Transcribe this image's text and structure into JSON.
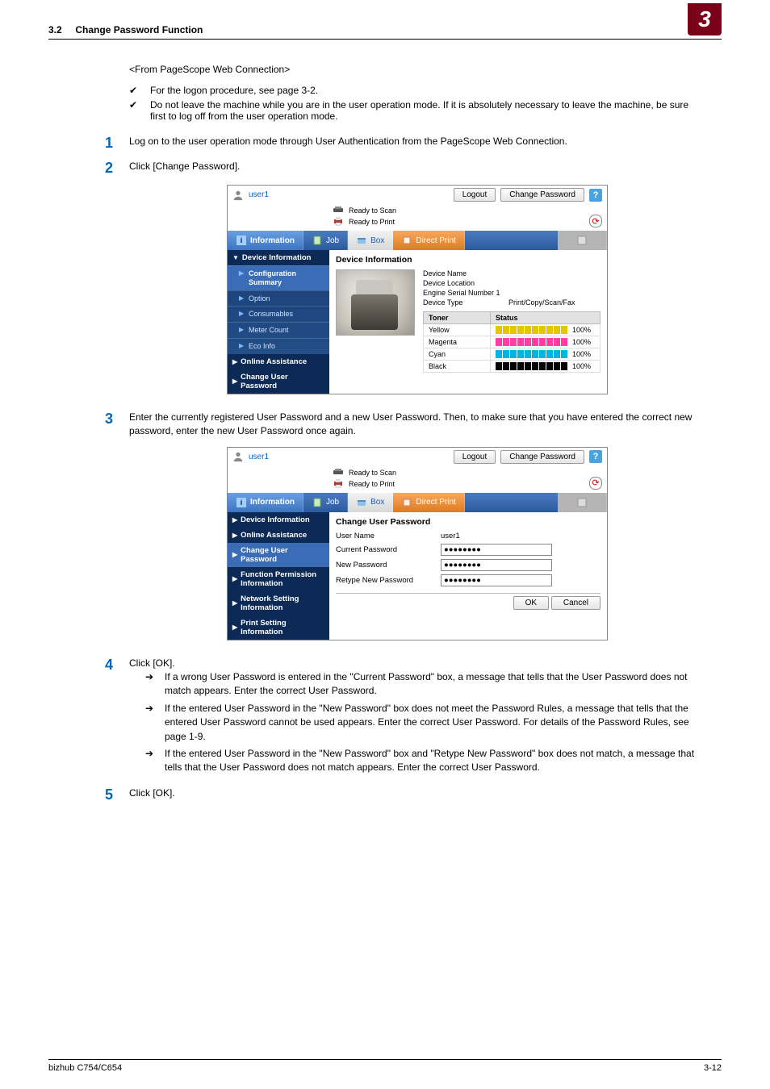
{
  "header": {
    "section": "3.2",
    "title": "Change Password Function",
    "chapter": "3"
  },
  "intro": {
    "from_line": "<From PageScope Web Connection>",
    "checks": [
      "For the logon procedure, see page 3-2.",
      "Do not leave the machine while you are in the user operation mode. If it is absolutely necessary to leave the machine, be sure first to log off from the user operation mode."
    ]
  },
  "steps": {
    "s1": "Log on to the user operation mode through User Authentication from the PageScope Web Connection.",
    "s2": "Click [Change Password].",
    "s3": "Enter the currently registered User Password and a new User Password. Then, to make sure that you have entered the correct new password, enter the new User Password once again.",
    "s4": "Click [OK].",
    "s4_subs": [
      "If a wrong User Password is entered in the \"Current Password\" box, a message that tells that the User Password does not match appears. Enter the correct User Password.",
      "If the entered User Password in the \"New Password\" box does not meet the Password Rules, a message that tells that the entered User Password cannot be used appears. Enter the correct User Password. For details of the Password Rules, see page 1-9.",
      "If the entered User Password in the \"New Password\" box and \"Retype New Password\" box does not match, a message that tells that the User Password does not match appears. Enter the correct User Password."
    ],
    "s5": "Click [OK]."
  },
  "screenshot_common": {
    "user": "user1",
    "logout": "Logout",
    "change_pw": "Change Password",
    "help": "?",
    "status_scan": "Ready to Scan",
    "status_print": "Ready to Print",
    "tabs": {
      "information": "Information",
      "job": "Job",
      "box": "Box",
      "direct": "Direct Print"
    }
  },
  "ss1": {
    "nav_header": "Device Information",
    "nav": {
      "config": "Configuration Summary",
      "option": "Option",
      "consumables": "Consumables",
      "meter": "Meter Count",
      "eco": "Eco Info",
      "online": "Online Assistance",
      "changepw": "Change User Password"
    },
    "main_title": "Device Information",
    "meta": {
      "dev_name_l": "Device Name",
      "dev_name_v": "",
      "dev_loc_l": "Device Location",
      "serial_l": "Engine Serial Number 1",
      "dev_type_l": "Device Type",
      "dev_type_v": "Print/Copy/Scan/Fax"
    },
    "toner": {
      "h_toner": "Toner",
      "h_status": "Status",
      "rows": [
        {
          "name": "Yellow",
          "color": "#e7c400",
          "pct": "100%"
        },
        {
          "name": "Magenta",
          "color": "#ff3fa6",
          "pct": "100%"
        },
        {
          "name": "Cyan",
          "color": "#00b5e0",
          "pct": "100%"
        },
        {
          "name": "Black",
          "color": "#000000",
          "pct": "100%"
        }
      ]
    }
  },
  "ss2": {
    "nav": {
      "devinfo": "Device Information",
      "online": "Online Assistance",
      "changepw": "Change User Password",
      "func": "Function Permission Information",
      "net": "Network Setting Information",
      "print": "Print Setting Information"
    },
    "main_title": "Change User Password",
    "form": {
      "uname_l": "User Name",
      "uname_v": "user1",
      "cur_l": "Current Password",
      "cur_v": "●●●●●●●●",
      "new_l": "New Password",
      "new_v": "●●●●●●●●",
      "re_l": "Retype New Password",
      "re_v": "●●●●●●●●",
      "ok": "OK",
      "cancel": "Cancel"
    }
  },
  "footer": {
    "left": "bizhub C754/C654",
    "right": "3-12"
  },
  "style": {
    "brand_maroon": "#7a0019",
    "step_blue": "#0068b6"
  }
}
